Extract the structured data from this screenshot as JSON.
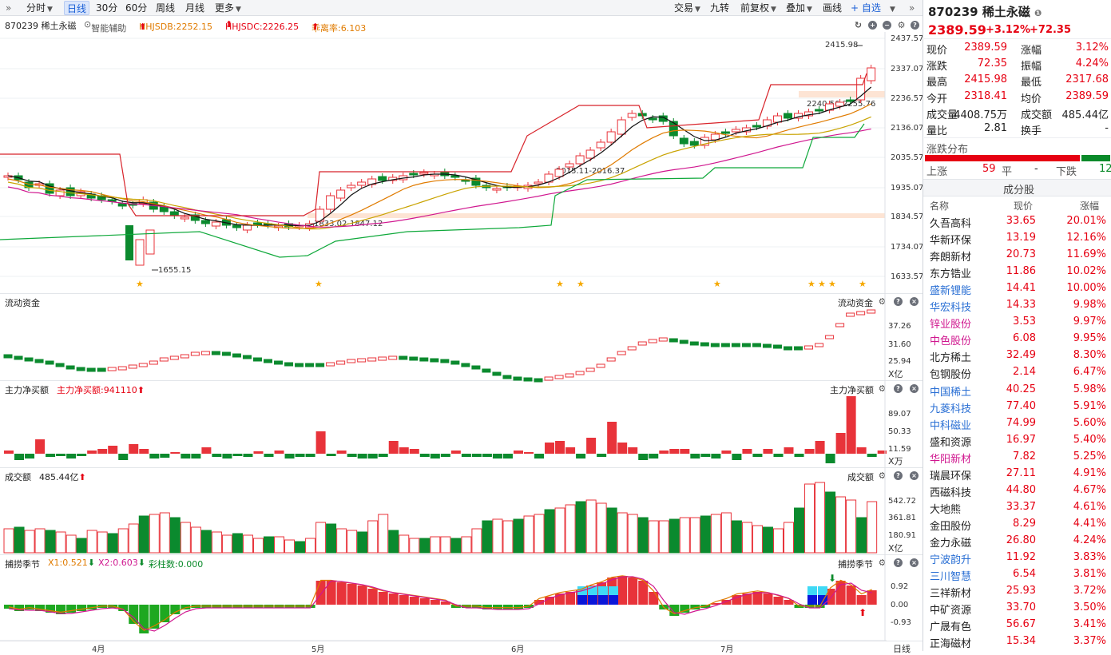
{
  "toolbar": {
    "nav": "»",
    "periods": [
      "分时",
      "日线",
      "30分",
      "60分",
      "周线",
      "月线",
      "更多"
    ],
    "active": "日线",
    "right": [
      "交易",
      "九转",
      "前复权",
      "叠加",
      "画线",
      "+ 自选"
    ]
  },
  "chart_header": {
    "code_name": "870239 稀土永磁",
    "assist": "智能辅助",
    "hhjsdb": "HHJSDB:2252.15",
    "hhjsdc": "HHJSDC:2226.25",
    "ratio": "乖离率:6.103"
  },
  "kline": {
    "y_axis": [
      "2437.57",
      "2337.07",
      "2236.57",
      "2136.07",
      "2035.57",
      "1935.07",
      "1834.57",
      "1734.07",
      "1633.57"
    ],
    "ylim": [
      1633.57,
      2437.57
    ],
    "annotations": {
      "high": "2415.98",
      "low": "1655.15",
      "range1": "1833.02-1847.12",
      "range2": "2015.11-2016.37",
      "range3": "2240.56-2255.76"
    }
  },
  "panels": {
    "flow": {
      "title": "流动资金",
      "right_title": "流动资金",
      "axis": [
        "37.26",
        "31.60",
        "25.94"
      ],
      "unit": "X亿"
    },
    "main_net": {
      "title": "主力净买额",
      "value": "主力净买额:941110",
      "right_title": "主力净买额",
      "axis": [
        "89.07",
        "50.33",
        "11.59"
      ],
      "unit": "X万"
    },
    "turnover": {
      "title": "成交额",
      "value": "485.44亿",
      "right_title": "成交额",
      "axis": [
        "542.72",
        "361.81",
        "180.91"
      ],
      "unit": "X亿"
    },
    "season": {
      "title": "捕捞季节",
      "x1": "X1:0.521",
      "x2": "X2:0.603",
      "bar": "彩柱数:0.000",
      "right_title": "捕捞季节",
      "axis": [
        "0.92",
        "0.00",
        "-0.93"
      ]
    }
  },
  "x_axis": [
    "4月",
    "5月",
    "6月",
    "7月"
  ],
  "bottom_right": "日线",
  "quote": {
    "code": "870239",
    "name": "稀土永磁",
    "price": "2389.59",
    "pct": "+3.12%",
    "chg": "+72.35",
    "fields": [
      [
        "现价",
        "2389.59",
        "涨幅",
        "3.12%"
      ],
      [
        "涨跌",
        "72.35",
        "振幅",
        "4.24%"
      ],
      [
        "最高",
        "2415.98",
        "最低",
        "2317.68"
      ],
      [
        "今开",
        "2318.41",
        "均价",
        "2389.59"
      ],
      [
        "成交量",
        "4408.75万",
        "成交额",
        "485.44亿"
      ],
      [
        "量比",
        "2.81",
        "换手",
        "-"
      ]
    ],
    "dist_title": "涨跌分布",
    "up_label": "上涨",
    "up": "59",
    "flat_label": "平",
    "flat": "-",
    "down_label": "下跌",
    "down": "12"
  },
  "components": {
    "title": "成分股",
    "cols": [
      "名称",
      "现价",
      "涨幅"
    ],
    "rows": [
      [
        "久吾高科",
        "33.65",
        "20.01%",
        ""
      ],
      [
        "华新环保",
        "13.19",
        "12.16%",
        ""
      ],
      [
        "奔朗新材",
        "20.73",
        "11.69%",
        ""
      ],
      [
        "东方锆业",
        "11.86",
        "10.02%",
        ""
      ],
      [
        "盛新锂能",
        "14.41",
        "10.00%",
        "blue"
      ],
      [
        "华宏科技",
        "14.33",
        "9.98%",
        "blue"
      ],
      [
        "锌业股份",
        "3.53",
        "9.97%",
        "pink"
      ],
      [
        "中色股份",
        "6.08",
        "9.95%",
        "pink"
      ],
      [
        "北方稀土",
        "32.49",
        "8.30%",
        ""
      ],
      [
        "包钢股份",
        "2.14",
        "6.47%",
        ""
      ],
      [
        "中国稀土",
        "40.25",
        "5.98%",
        "blue"
      ],
      [
        "九菱科技",
        "77.40",
        "5.91%",
        "blue"
      ],
      [
        "中科磁业",
        "74.99",
        "5.60%",
        "blue"
      ],
      [
        "盛和资源",
        "16.97",
        "5.40%",
        ""
      ],
      [
        "华阳新材",
        "7.82",
        "5.25%",
        "pink"
      ],
      [
        "瑞晨环保",
        "27.11",
        "4.91%",
        ""
      ],
      [
        "西磁科技",
        "44.80",
        "4.67%",
        ""
      ],
      [
        "大地熊",
        "33.37",
        "4.61%",
        ""
      ],
      [
        "金田股份",
        "8.29",
        "4.41%",
        ""
      ],
      [
        "金力永磁",
        "26.80",
        "4.24%",
        ""
      ],
      [
        "宁波韵升",
        "11.92",
        "3.83%",
        "blue"
      ],
      [
        "三川智慧",
        "6.54",
        "3.81%",
        "blue"
      ],
      [
        "三祥新材",
        "25.93",
        "3.72%",
        ""
      ],
      [
        "中矿资源",
        "33.70",
        "3.50%",
        ""
      ],
      [
        "广晟有色",
        "56.67",
        "3.41%",
        ""
      ],
      [
        "正海磁材",
        "15.34",
        "3.37%",
        ""
      ]
    ]
  }
}
